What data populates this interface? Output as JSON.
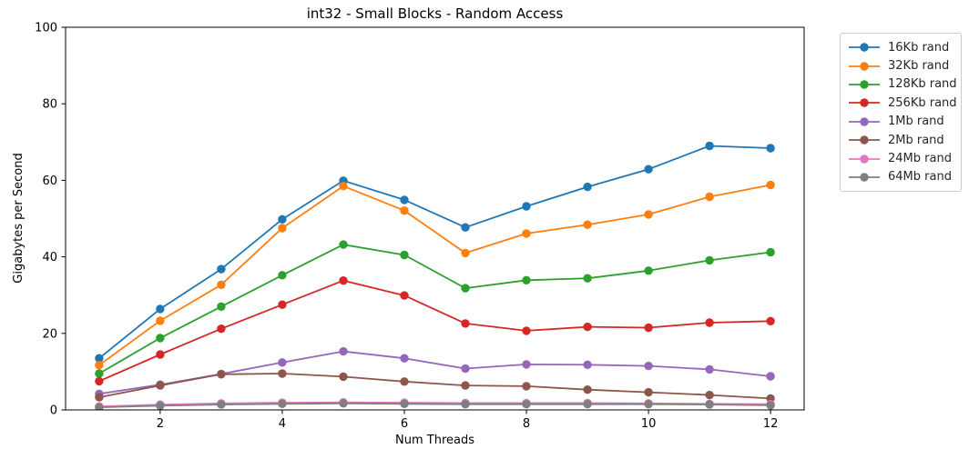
{
  "chart_data": {
    "type": "line",
    "title": "int32 - Small Blocks - Random Access",
    "xlabel": "Num Threads",
    "ylabel": "Gigabytes per Second",
    "x": [
      1,
      2,
      3,
      4,
      5,
      6,
      7,
      8,
      9,
      10,
      11,
      12
    ],
    "xticks": [
      2,
      4,
      6,
      8,
      10,
      12
    ],
    "yticks": [
      0,
      20,
      40,
      60,
      80,
      100
    ],
    "xlim": [
      0.45,
      12.55
    ],
    "ylim": [
      0,
      100
    ],
    "grid": false,
    "marker": "circle",
    "legend_position": "upper-right-outside",
    "series": [
      {
        "name": "16Kb rand",
        "color": "#1f77b4",
        "values": [
          13.5,
          26.4,
          36.8,
          49.8,
          59.9,
          54.9,
          47.7,
          53.2,
          58.3,
          62.9,
          69.0,
          68.4
        ]
      },
      {
        "name": "32Kb rand",
        "color": "#ff7f0e",
        "values": [
          11.7,
          23.3,
          32.7,
          47.5,
          58.5,
          52.1,
          41.0,
          46.1,
          48.4,
          51.1,
          55.7,
          58.8
        ]
      },
      {
        "name": "128Kb rand",
        "color": "#2ca02c",
        "values": [
          9.5,
          18.8,
          27.0,
          35.2,
          43.2,
          40.5,
          31.8,
          33.9,
          34.4,
          36.4,
          39.1,
          41.2
        ]
      },
      {
        "name": "256Kb rand",
        "color": "#d62728",
        "values": [
          7.5,
          14.5,
          21.2,
          27.5,
          33.8,
          29.9,
          22.6,
          20.7,
          21.7,
          21.5,
          22.8,
          23.2
        ]
      },
      {
        "name": "1Mb rand",
        "color": "#9467bd",
        "values": [
          4.2,
          6.6,
          9.4,
          12.4,
          15.3,
          13.5,
          10.8,
          11.9,
          11.8,
          11.5,
          10.6,
          8.8
        ]
      },
      {
        "name": "2Mb rand",
        "color": "#8c564b",
        "values": [
          3.3,
          6.4,
          9.3,
          9.5,
          8.7,
          7.4,
          6.4,
          6.2,
          5.3,
          4.6,
          3.9,
          3.0
        ]
      },
      {
        "name": "24Mb rand",
        "color": "#e377c2",
        "values": [
          0.9,
          1.4,
          1.7,
          1.9,
          2.0,
          1.9,
          1.8,
          1.8,
          1.8,
          1.7,
          1.6,
          1.5
        ]
      },
      {
        "name": "64Mb rand",
        "color": "#7f7f7f",
        "values": [
          0.7,
          1.1,
          1.4,
          1.6,
          1.7,
          1.6,
          1.5,
          1.5,
          1.5,
          1.5,
          1.4,
          1.2
        ]
      }
    ]
  }
}
